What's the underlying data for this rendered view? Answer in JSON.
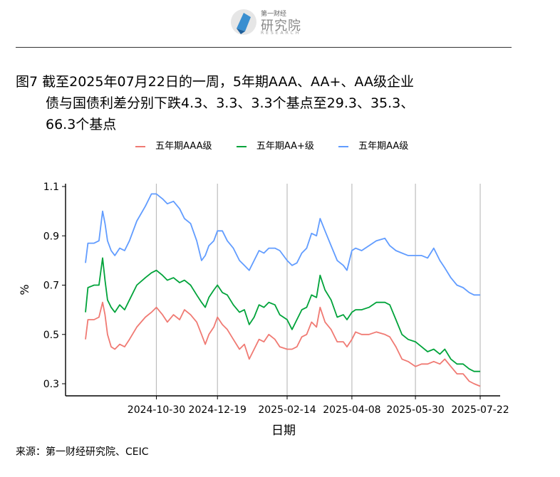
{
  "header": {
    "logo_top": "第一财经",
    "logo_main": "研究院",
    "logo_sub": "RESEARCH"
  },
  "figure": {
    "title_line1": "图7  截至2025年07月22日的一周，5年期AAA、AA+、AA级企业",
    "title_line2": "债与国债利差分别下跌4.3、3.3、3.3个基点至29.3、35.3、",
    "title_line3": "66.3个基点",
    "source": "来源：第一财经研究院、CEIC"
  },
  "chart_data": {
    "type": "line",
    "xlabel": "日期",
    "ylabel": "%",
    "ylim": [
      0.26,
      1.12
    ],
    "yticks": [
      "0.3",
      "0.5",
      "0.7",
      "0.9",
      "1.1"
    ],
    "xticks": [
      "2024-10-30",
      "2024-12-19",
      "2025-02-14",
      "2025-04-08",
      "2025-05-30",
      "2025-07-22"
    ],
    "x_start": "2024-09-02",
    "x_end": "2025-07-22",
    "grid": "vertical at x ticks",
    "legend_position": "top",
    "series": [
      {
        "name": "五年期AAA级",
        "color": "#f07a73",
        "values": [
          [
            "2024-09-02",
            0.48
          ],
          [
            "2024-09-04",
            0.56
          ],
          [
            "2024-09-09",
            0.56
          ],
          [
            "2024-09-13",
            0.57
          ],
          [
            "2024-09-16",
            0.63
          ],
          [
            "2024-09-18",
            0.58
          ],
          [
            "2024-09-20",
            0.5
          ],
          [
            "2024-09-23",
            0.45
          ],
          [
            "2024-09-26",
            0.44
          ],
          [
            "2024-09-30",
            0.46
          ],
          [
            "2024-10-04",
            0.45
          ],
          [
            "2024-10-08",
            0.48
          ],
          [
            "2024-10-14",
            0.53
          ],
          [
            "2024-10-21",
            0.57
          ],
          [
            "2024-10-26",
            0.59
          ],
          [
            "2024-10-30",
            0.61
          ],
          [
            "2024-11-04",
            0.58
          ],
          [
            "2024-11-08",
            0.55
          ],
          [
            "2024-11-13",
            0.58
          ],
          [
            "2024-11-18",
            0.56
          ],
          [
            "2024-11-22",
            0.6
          ],
          [
            "2024-11-27",
            0.58
          ],
          [
            "2024-12-02",
            0.55
          ],
          [
            "2024-12-06",
            0.5
          ],
          [
            "2024-12-09",
            0.46
          ],
          [
            "2024-12-12",
            0.5
          ],
          [
            "2024-12-16",
            0.53
          ],
          [
            "2024-12-19",
            0.57
          ],
          [
            "2024-12-23",
            0.54
          ],
          [
            "2024-12-27",
            0.52
          ],
          [
            "2025-01-01",
            0.48
          ],
          [
            "2025-01-06",
            0.44
          ],
          [
            "2025-01-10",
            0.46
          ],
          [
            "2025-01-14",
            0.4
          ],
          [
            "2025-01-18",
            0.44
          ],
          [
            "2025-01-22",
            0.48
          ],
          [
            "2025-01-26",
            0.47
          ],
          [
            "2025-01-30",
            0.5
          ],
          [
            "2025-02-04",
            0.48
          ],
          [
            "2025-02-08",
            0.45
          ],
          [
            "2025-02-14",
            0.44
          ],
          [
            "2025-02-18",
            0.44
          ],
          [
            "2025-02-22",
            0.45
          ],
          [
            "2025-02-26",
            0.49
          ],
          [
            "2025-03-02",
            0.5
          ],
          [
            "2025-03-06",
            0.55
          ],
          [
            "2025-03-10",
            0.53
          ],
          [
            "2025-03-13",
            0.61
          ],
          [
            "2025-03-17",
            0.55
          ],
          [
            "2025-03-22",
            0.52
          ],
          [
            "2025-03-27",
            0.47
          ],
          [
            "2025-04-01",
            0.47
          ],
          [
            "2025-04-04",
            0.45
          ],
          [
            "2025-04-08",
            0.48
          ],
          [
            "2025-04-11",
            0.51
          ],
          [
            "2025-04-16",
            0.5
          ],
          [
            "2025-04-22",
            0.5
          ],
          [
            "2025-04-28",
            0.51
          ],
          [
            "2025-05-05",
            0.5
          ],
          [
            "2025-05-09",
            0.49
          ],
          [
            "2025-05-14",
            0.45
          ],
          [
            "2025-05-19",
            0.4
          ],
          [
            "2025-05-24",
            0.39
          ],
          [
            "2025-05-30",
            0.37
          ],
          [
            "2025-06-04",
            0.38
          ],
          [
            "2025-06-09",
            0.38
          ],
          [
            "2025-06-14",
            0.39
          ],
          [
            "2025-06-19",
            0.38
          ],
          [
            "2025-06-23",
            0.4
          ],
          [
            "2025-06-28",
            0.37
          ],
          [
            "2025-07-03",
            0.34
          ],
          [
            "2025-07-08",
            0.34
          ],
          [
            "2025-07-13",
            0.31
          ],
          [
            "2025-07-17",
            0.3
          ],
          [
            "2025-07-22",
            0.29
          ]
        ]
      },
      {
        "name": "五年期AA+级",
        "color": "#00a33a",
        "values": [
          [
            "2024-09-02",
            0.59
          ],
          [
            "2024-09-04",
            0.69
          ],
          [
            "2024-09-09",
            0.7
          ],
          [
            "2024-09-13",
            0.7
          ],
          [
            "2024-09-16",
            0.81
          ],
          [
            "2024-09-18",
            0.72
          ],
          [
            "2024-09-20",
            0.64
          ],
          [
            "2024-09-23",
            0.61
          ],
          [
            "2024-09-26",
            0.59
          ],
          [
            "2024-09-30",
            0.62
          ],
          [
            "2024-10-04",
            0.6
          ],
          [
            "2024-10-08",
            0.64
          ],
          [
            "2024-10-14",
            0.7
          ],
          [
            "2024-10-21",
            0.73
          ],
          [
            "2024-10-26",
            0.75
          ],
          [
            "2024-10-30",
            0.76
          ],
          [
            "2024-11-04",
            0.74
          ],
          [
            "2024-11-08",
            0.72
          ],
          [
            "2024-11-13",
            0.73
          ],
          [
            "2024-11-18",
            0.71
          ],
          [
            "2024-11-22",
            0.72
          ],
          [
            "2024-11-27",
            0.7
          ],
          [
            "2024-12-02",
            0.66
          ],
          [
            "2024-12-06",
            0.63
          ],
          [
            "2024-12-09",
            0.61
          ],
          [
            "2024-12-12",
            0.65
          ],
          [
            "2024-12-16",
            0.68
          ],
          [
            "2024-12-19",
            0.7
          ],
          [
            "2024-12-23",
            0.67
          ],
          [
            "2024-12-27",
            0.66
          ],
          [
            "2025-01-01",
            0.62
          ],
          [
            "2025-01-06",
            0.59
          ],
          [
            "2025-01-10",
            0.6
          ],
          [
            "2025-01-14",
            0.54
          ],
          [
            "2025-01-18",
            0.57
          ],
          [
            "2025-01-22",
            0.62
          ],
          [
            "2025-01-26",
            0.61
          ],
          [
            "2025-01-30",
            0.63
          ],
          [
            "2025-02-04",
            0.62
          ],
          [
            "2025-02-08",
            0.58
          ],
          [
            "2025-02-14",
            0.56
          ],
          [
            "2025-02-18",
            0.52
          ],
          [
            "2025-02-22",
            0.56
          ],
          [
            "2025-02-26",
            0.6
          ],
          [
            "2025-03-02",
            0.61
          ],
          [
            "2025-03-06",
            0.66
          ],
          [
            "2025-03-10",
            0.65
          ],
          [
            "2025-03-13",
            0.74
          ],
          [
            "2025-03-17",
            0.68
          ],
          [
            "2025-03-22",
            0.64
          ],
          [
            "2025-03-27",
            0.57
          ],
          [
            "2025-04-01",
            0.58
          ],
          [
            "2025-04-04",
            0.56
          ],
          [
            "2025-04-08",
            0.59
          ],
          [
            "2025-04-11",
            0.6
          ],
          [
            "2025-04-16",
            0.6
          ],
          [
            "2025-04-22",
            0.61
          ],
          [
            "2025-04-28",
            0.63
          ],
          [
            "2025-05-05",
            0.63
          ],
          [
            "2025-05-09",
            0.62
          ],
          [
            "2025-05-14",
            0.56
          ],
          [
            "2025-05-19",
            0.5
          ],
          [
            "2025-05-24",
            0.48
          ],
          [
            "2025-05-30",
            0.47
          ],
          [
            "2025-06-04",
            0.45
          ],
          [
            "2025-06-09",
            0.43
          ],
          [
            "2025-06-14",
            0.44
          ],
          [
            "2025-06-19",
            0.42
          ],
          [
            "2025-06-23",
            0.44
          ],
          [
            "2025-06-28",
            0.4
          ],
          [
            "2025-07-03",
            0.38
          ],
          [
            "2025-07-08",
            0.38
          ],
          [
            "2025-07-13",
            0.36
          ],
          [
            "2025-07-17",
            0.35
          ],
          [
            "2025-07-22",
            0.35
          ]
        ]
      },
      {
        "name": "五年期AA级",
        "color": "#619cff",
        "values": [
          [
            "2024-09-02",
            0.79
          ],
          [
            "2024-09-04",
            0.87
          ],
          [
            "2024-09-09",
            0.87
          ],
          [
            "2024-09-13",
            0.88
          ],
          [
            "2024-09-16",
            1.0
          ],
          [
            "2024-09-18",
            0.95
          ],
          [
            "2024-09-20",
            0.88
          ],
          [
            "2024-09-23",
            0.84
          ],
          [
            "2024-09-26",
            0.82
          ],
          [
            "2024-09-30",
            0.85
          ],
          [
            "2024-10-04",
            0.84
          ],
          [
            "2024-10-08",
            0.88
          ],
          [
            "2024-10-14",
            0.96
          ],
          [
            "2024-10-21",
            1.02
          ],
          [
            "2024-10-26",
            1.07
          ],
          [
            "2024-10-30",
            1.07
          ],
          [
            "2024-11-04",
            1.05
          ],
          [
            "2024-11-08",
            1.03
          ],
          [
            "2024-11-13",
            1.04
          ],
          [
            "2024-11-18",
            1.01
          ],
          [
            "2024-11-22",
            0.97
          ],
          [
            "2024-11-27",
            0.95
          ],
          [
            "2024-12-02",
            0.88
          ],
          [
            "2024-12-06",
            0.8
          ],
          [
            "2024-12-09",
            0.82
          ],
          [
            "2024-12-12",
            0.86
          ],
          [
            "2024-12-16",
            0.88
          ],
          [
            "2024-12-19",
            0.92
          ],
          [
            "2024-12-23",
            0.92
          ],
          [
            "2024-12-27",
            0.88
          ],
          [
            "2025-01-01",
            0.85
          ],
          [
            "2025-01-06",
            0.8
          ],
          [
            "2025-01-10",
            0.78
          ],
          [
            "2025-01-14",
            0.76
          ],
          [
            "2025-01-18",
            0.8
          ],
          [
            "2025-01-22",
            0.84
          ],
          [
            "2025-01-26",
            0.83
          ],
          [
            "2025-01-30",
            0.85
          ],
          [
            "2025-02-04",
            0.85
          ],
          [
            "2025-02-08",
            0.84
          ],
          [
            "2025-02-14",
            0.8
          ],
          [
            "2025-02-18",
            0.78
          ],
          [
            "2025-02-22",
            0.79
          ],
          [
            "2025-02-26",
            0.83
          ],
          [
            "2025-03-02",
            0.85
          ],
          [
            "2025-03-06",
            0.91
          ],
          [
            "2025-03-10",
            0.9
          ],
          [
            "2025-03-13",
            0.97
          ],
          [
            "2025-03-17",
            0.92
          ],
          [
            "2025-03-22",
            0.86
          ],
          [
            "2025-03-27",
            0.8
          ],
          [
            "2025-04-01",
            0.78
          ],
          [
            "2025-04-04",
            0.76
          ],
          [
            "2025-04-08",
            0.84
          ],
          [
            "2025-04-11",
            0.85
          ],
          [
            "2025-04-16",
            0.84
          ],
          [
            "2025-04-22",
            0.86
          ],
          [
            "2025-04-28",
            0.88
          ],
          [
            "2025-05-05",
            0.89
          ],
          [
            "2025-05-09",
            0.86
          ],
          [
            "2025-05-14",
            0.84
          ],
          [
            "2025-05-19",
            0.83
          ],
          [
            "2025-05-24",
            0.82
          ],
          [
            "2025-05-30",
            0.82
          ],
          [
            "2025-06-04",
            0.82
          ],
          [
            "2025-06-09",
            0.81
          ],
          [
            "2025-06-14",
            0.85
          ],
          [
            "2025-06-19",
            0.8
          ],
          [
            "2025-06-23",
            0.77
          ],
          [
            "2025-06-28",
            0.73
          ],
          [
            "2025-07-03",
            0.7
          ],
          [
            "2025-07-08",
            0.69
          ],
          [
            "2025-07-13",
            0.67
          ],
          [
            "2025-07-17",
            0.66
          ],
          [
            "2025-07-22",
            0.66
          ]
        ]
      }
    ]
  }
}
